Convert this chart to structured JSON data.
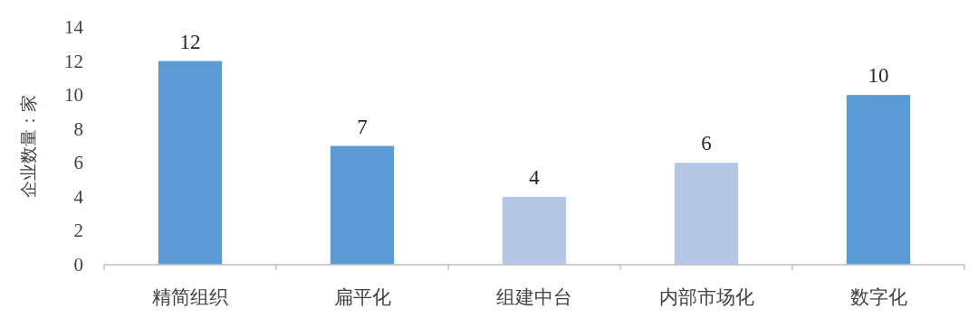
{
  "chart_data": {
    "type": "bar",
    "ylabel": "企业数量：家",
    "categories": [
      "精简组织",
      "扁平化",
      "组建中台",
      "内部市场化",
      "数字化"
    ],
    "values": [
      12,
      7,
      4,
      6,
      10
    ],
    "colors": [
      "#5b9bd5",
      "#5b9bd5",
      "#b4c7e7",
      "#b4c7e7",
      "#5b9bd5"
    ],
    "ylim": [
      0,
      14
    ],
    "yticks": [
      0,
      2,
      4,
      6,
      8,
      10,
      12,
      14
    ],
    "data_labels": true
  }
}
